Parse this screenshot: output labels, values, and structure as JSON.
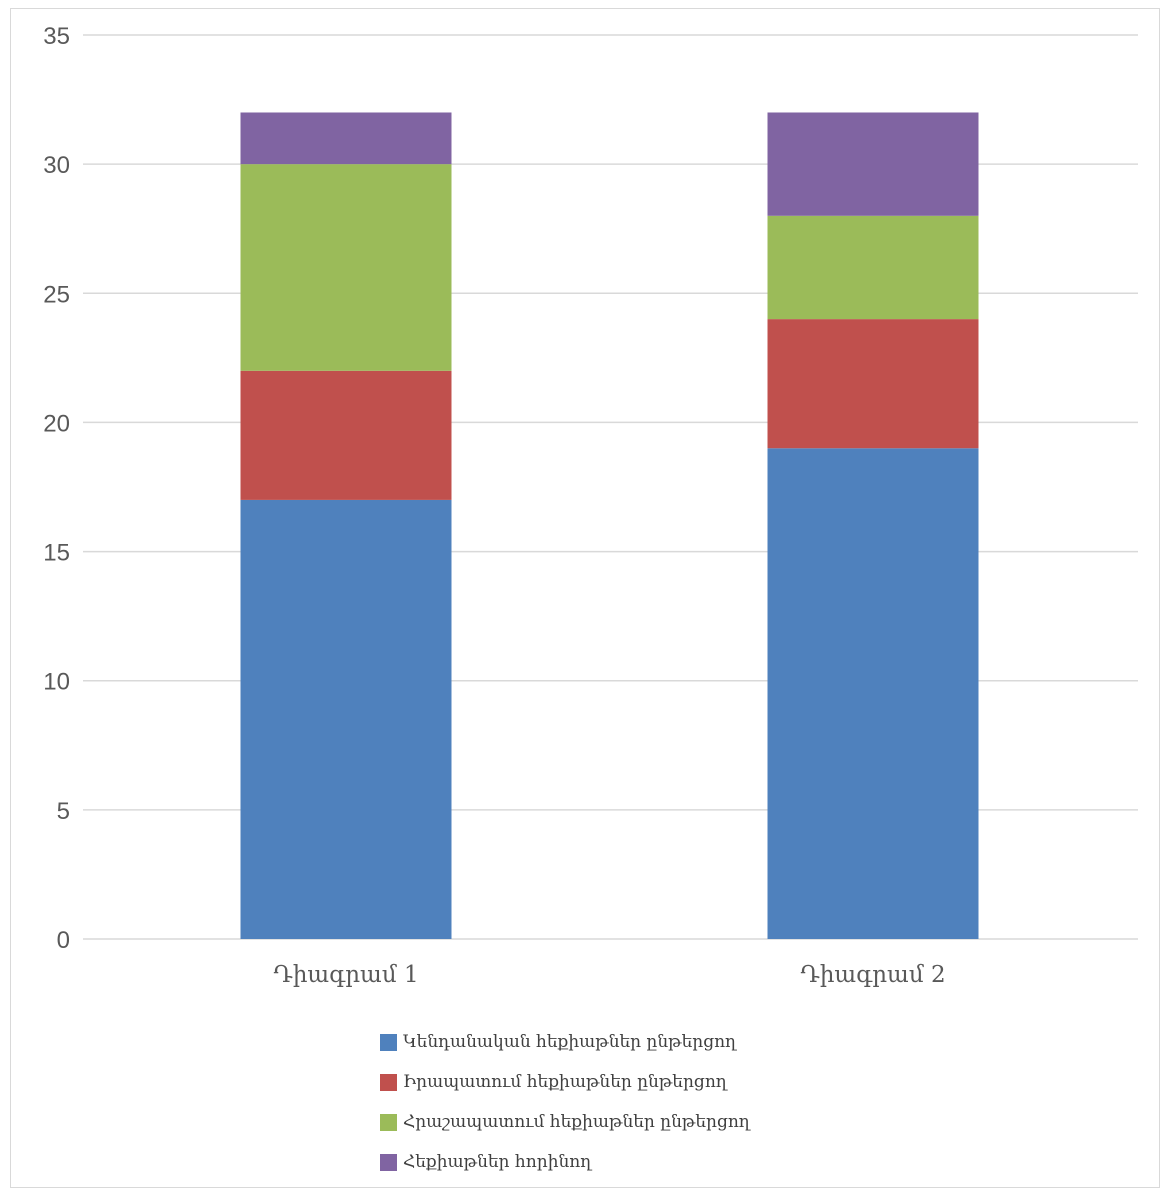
{
  "chart_data": {
    "type": "bar",
    "stacked": true,
    "categories": [
      "Դիագրամ 1",
      "Դիագրամ 2"
    ],
    "series": [
      {
        "name": "Կենդանական հեքիաթներ ընթերցող",
        "values": [
          17,
          19
        ],
        "color": "#4f81bd"
      },
      {
        "name": "Իրապատում հեքիաթներ ընթերցող",
        "values": [
          5,
          5
        ],
        "color": "#c0504d"
      },
      {
        "name": "Հրաշապատում հեքիաթներ ընթերցող",
        "values": [
          8,
          4
        ],
        "color": "#9bbb59"
      },
      {
        "name": "Հեքիաթներ հորինող",
        "values": [
          2,
          4
        ],
        "color": "#8064a2"
      }
    ],
    "ylim": [
      0,
      35
    ],
    "yticks": [
      0,
      5,
      10,
      15,
      20,
      25,
      30,
      35
    ],
    "grid": true,
    "legend_position": "bottom",
    "title": "",
    "xlabel": "",
    "ylabel": ""
  }
}
